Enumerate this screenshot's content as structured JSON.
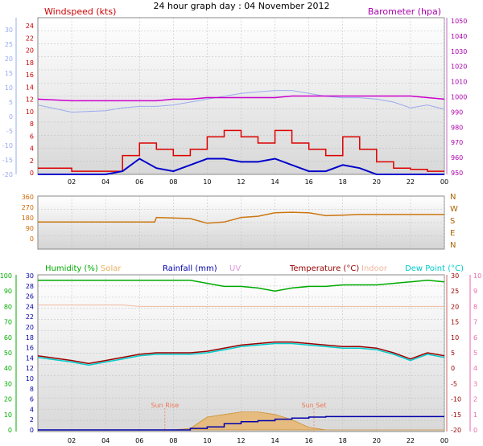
{
  "title": "24 hour graph day : 04 November 2012",
  "x_ticks": [
    "02",
    "04",
    "06",
    "08",
    "10",
    "12",
    "14",
    "16",
    "18",
    "20",
    "22",
    "00"
  ],
  "colors": {
    "wind": "#dd0000",
    "gust": "#0000cc",
    "baro": "#cc00cc",
    "temp_overlay": "#99aaee",
    "dir": "#cc7711",
    "humidity": "#00aa00",
    "solar": "#e8b060",
    "rain": "#0000aa",
    "uv": "#dd99dd",
    "temperature": "#990000",
    "indoor": "#f0b8a0",
    "dewpoint": "#00cccc",
    "axis_left": "#99aaee",
    "axis_right": "#ee66aa"
  },
  "chart_data": [
    {
      "type": "line",
      "title": "",
      "left_axis_label": "Windspeed (kts)",
      "right_axis_label": "Barometer (hpa)",
      "outer_left_ticks": [
        "30",
        "25",
        "20",
        "15",
        "10",
        "5",
        "0",
        "-5",
        "-10",
        "-15",
        "-20"
      ],
      "left_ticks": [
        "24",
        "22",
        "20",
        "18",
        "16",
        "14",
        "12",
        "10",
        "8",
        "6",
        "4",
        "2",
        "0"
      ],
      "right_ticks": [
        "1050",
        "1040",
        "1030",
        "1020",
        "1010",
        "1000",
        "990",
        "980",
        "970",
        "960",
        "950"
      ],
      "ylim_left": [
        0,
        25
      ],
      "ylim_right": [
        950,
        1050
      ],
      "x_hours": [
        0,
        2,
        4,
        5,
        6,
        7,
        8,
        9,
        10,
        11,
        12,
        13,
        14,
        15,
        16,
        17,
        18,
        19,
        20,
        21,
        22,
        23,
        24
      ],
      "series": [
        {
          "name": "Windspeed",
          "values": [
            1,
            0.5,
            0.5,
            3,
            5,
            4,
            3,
            4,
            6,
            7,
            6,
            5,
            7,
            5,
            4,
            3,
            6,
            4,
            2,
            1,
            0.8,
            0.5,
            0.5
          ]
        },
        {
          "name": "Gust",
          "values": [
            0,
            0,
            0,
            0.5,
            2.5,
            1,
            0.5,
            1.5,
            2.5,
            2.5,
            2,
            2,
            2.5,
            1.5,
            0.5,
            0.5,
            1.5,
            1,
            0,
            0,
            0,
            0,
            0
          ]
        },
        {
          "name": "Barometer",
          "values": [
            998,
            997,
            997,
            997,
            997,
            997,
            998,
            998,
            999,
            999,
            999,
            999,
            999,
            1000,
            1000,
            1000,
            1000,
            1000,
            1000,
            1000,
            1000,
            999,
            998
          ]
        },
        {
          "name": "Temperature",
          "outer_scale": true,
          "values": [
            4,
            1.5,
            2,
            3,
            3.5,
            3.5,
            4,
            5,
            6,
            7,
            8,
            8.5,
            9,
            9,
            8,
            7,
            6.5,
            6.5,
            6,
            5,
            3,
            4,
            2.5
          ]
        }
      ]
    },
    {
      "type": "line",
      "title": "",
      "left_ticks": [
        "360",
        "270",
        "180",
        "90",
        "0"
      ],
      "right_ticks": [
        "N",
        "W",
        "S",
        "E",
        "N"
      ],
      "ylim": [
        0,
        360
      ],
      "x_hours": [
        0,
        2,
        4,
        5,
        6,
        6.9,
        7,
        8,
        9,
        10,
        11,
        12,
        13,
        14,
        15,
        16,
        17,
        18,
        19,
        20,
        21,
        22,
        23,
        24
      ],
      "series": [
        {
          "name": "Wind Direction",
          "values": [
            150,
            150,
            150,
            150,
            150,
            150,
            190,
            185,
            180,
            140,
            150,
            190,
            200,
            230,
            235,
            230,
            205,
            210,
            215,
            215,
            215,
            215,
            215,
            215
          ]
        }
      ]
    },
    {
      "type": "line",
      "title": "",
      "legend": [
        "Humidity (%)",
        "Solar",
        "Rainfall (mm)",
        "UV",
        "Temperature (°C)",
        "Indoor",
        "Dew Point (°C)"
      ],
      "outer_left_ticks": [
        "100",
        "90",
        "80",
        "70",
        "60",
        "50",
        "40",
        "30",
        "20",
        "10",
        "0"
      ],
      "left_ticks": [
        "30",
        "28",
        "26",
        "24",
        "22",
        "20",
        "18",
        "16",
        "14",
        "12",
        "10",
        "8",
        "6",
        "4",
        "2",
        "0"
      ],
      "right_ticks": [
        "30",
        "25",
        "20",
        "15",
        "10",
        "5",
        "0",
        "-5",
        "-10",
        "-15",
        "-20"
      ],
      "outer_right_ticks": [
        "10",
        "9",
        "8",
        "7",
        "6",
        "5",
        "4",
        "3",
        "2",
        "1",
        "0"
      ],
      "annotations": [
        "Sun Rise",
        "Sun Set"
      ],
      "x_hours": [
        0,
        2,
        3,
        4,
        5,
        6,
        7,
        8,
        9,
        10,
        11,
        12,
        13,
        14,
        15,
        16,
        17,
        18,
        19,
        20,
        21,
        22,
        23,
        24
      ],
      "series": [
        {
          "name": "Humidity (%)",
          "values": [
            97,
            97,
            97,
            97,
            97,
            97,
            97,
            97,
            97,
            95,
            93,
            93,
            92,
            90,
            92,
            93,
            93,
            94,
            94,
            94,
            95,
            96,
            97,
            96
          ]
        },
        {
          "name": "Temperature (°C)",
          "values": [
            4,
            2.5,
            1.5,
            2.5,
            3.5,
            4.5,
            5,
            5,
            5,
            5.5,
            6.5,
            7.5,
            8,
            8.5,
            8.5,
            8,
            7.5,
            7,
            7,
            6.5,
            5,
            3,
            5,
            4
          ]
        },
        {
          "name": "Dew Point (°C)",
          "values": [
            3.5,
            2,
            1,
            2,
            3,
            4,
            4.5,
            4.5,
            4.5,
            5,
            6,
            7,
            7.5,
            8,
            8,
            7.5,
            7,
            6.5,
            6.5,
            6,
            4.5,
            2.5,
            4.5,
            3.5
          ]
        },
        {
          "name": "Indoor",
          "values": [
            20.5,
            20.5,
            20.5,
            20.5,
            20.5,
            20,
            20,
            20,
            20,
            20,
            20,
            20,
            20,
            20,
            20,
            20,
            20,
            20,
            20,
            20,
            20,
            20,
            20,
            20
          ]
        },
        {
          "name": "Rainfall (mm)",
          "values": [
            0,
            0,
            0,
            0,
            0,
            0,
            0,
            0,
            0.3,
            0.6,
            1.2,
            1.6,
            1.8,
            2.1,
            2.3,
            2.5,
            2.6,
            2.6,
            2.6,
            2.6,
            2.6,
            2.6,
            2.6,
            2.6
          ]
        },
        {
          "name": "Solar",
          "values": [
            0,
            0,
            0,
            0,
            0,
            0,
            0,
            0,
            0.3,
            2.5,
            3,
            3.5,
            3.5,
            3,
            2,
            0.5,
            0,
            0,
            0,
            0,
            0,
            0,
            0,
            0
          ]
        }
      ]
    }
  ]
}
